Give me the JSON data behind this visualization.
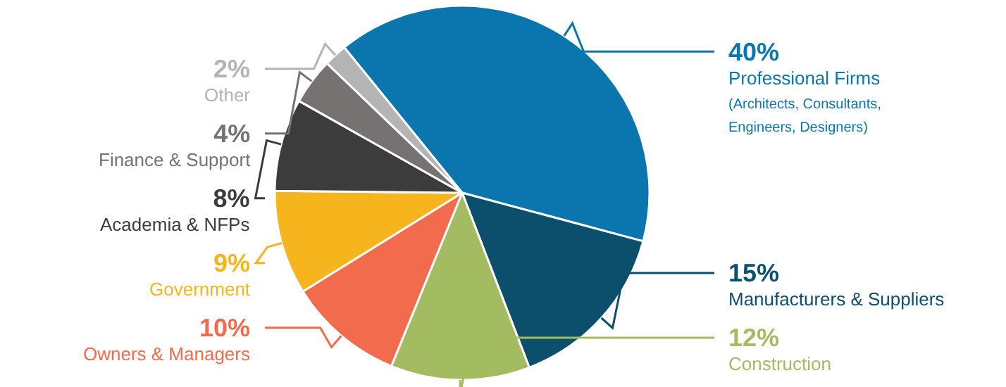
{
  "chart_data": {
    "type": "pie",
    "categories": [
      "Professional Firms\n(Architects, Consultants,\nEngineers, Designers)",
      "Manufacturers & Suppliers",
      "Construction",
      "Owners & Managers",
      "Government",
      "Academia & NFPs",
      "Finance & Support",
      "Other"
    ],
    "values": [
      40,
      15,
      12,
      10,
      9,
      8,
      4,
      2
    ],
    "colors": [
      "#0a76ad",
      "#0b4f6c",
      "#a3bb61",
      "#f26b4c",
      "#f7b51d",
      "#3c3c3c",
      "#777272",
      "#b4b4b4"
    ],
    "value_labels": [
      "40%",
      "15%",
      "12%",
      "10%",
      "9%",
      "8%",
      "4%",
      "2%"
    ],
    "legend": false
  }
}
